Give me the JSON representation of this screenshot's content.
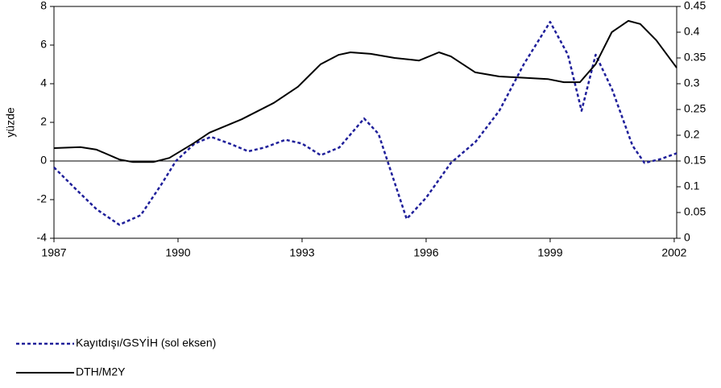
{
  "chart_data": {
    "type": "line",
    "y_label": "yüzde",
    "xlim": [
      1987,
      2002.06
    ],
    "xticks": [
      1987,
      1990,
      1993,
      1996,
      1999,
      2002
    ],
    "ylim": [
      -4,
      8
    ],
    "yticks": [
      -4,
      -2,
      0,
      2,
      4,
      6,
      8
    ],
    "y2lim": [
      0,
      0.45
    ],
    "y2ticks": [
      0,
      0.05,
      0.1,
      0.15,
      0.2,
      0.25,
      0.3,
      0.35,
      0.4,
      0.45
    ],
    "series": [
      {
        "name": "Kayıtdışı/GSYİH (sol eksen)",
        "color": "#1f1f9a",
        "dash": true,
        "x": [
          1987,
          1987.55,
          1988.03,
          1988.58,
          1989.1,
          1989.6,
          1989.95,
          1990.4,
          1990.8,
          1991.25,
          1991.7,
          1992.1,
          1992.6,
          1993.0,
          1993.45,
          1993.9,
          1994.5,
          1994.85,
          1995.53,
          1996.0,
          1996.6,
          1997.2,
          1997.77,
          1998.36,
          1999.0,
          1999.43,
          1999.76,
          2000.1,
          2000.5,
          2000.99,
          2001.28,
          2001.67,
          2002.06
        ],
        "values": [
          -0.33,
          -1.5,
          -2.5,
          -3.3,
          -2.8,
          -1.2,
          0.0,
          0.9,
          1.25,
          0.9,
          0.5,
          0.7,
          1.1,
          0.9,
          0.3,
          0.7,
          2.2,
          1.4,
          -3.0,
          -1.9,
          -0.1,
          1.0,
          2.6,
          5.0,
          7.2,
          5.5,
          2.6,
          5.5,
          3.7,
          0.8,
          -0.1,
          0.1,
          0.4
        ]
      },
      {
        "name": "DTH/M2Y",
        "color": "#000000",
        "dash": false,
        "axis": "y2",
        "x": [
          1987,
          1987.64,
          1988.03,
          1988.58,
          1988.91,
          1989.4,
          1989.79,
          1990.37,
          1990.76,
          1991.54,
          1992.32,
          1992.9,
          1993.45,
          1993.88,
          1994.17,
          1994.66,
          1995.24,
          1995.83,
          1996.31,
          1996.6,
          1997.19,
          1997.77,
          1998.94,
          1999.33,
          1999.72,
          2000.1,
          2000.49,
          2000.89,
          2001.18,
          2001.57,
          2002.06
        ],
        "values": [
          0.175,
          0.177,
          0.172,
          0.153,
          0.148,
          0.148,
          0.156,
          0.184,
          0.205,
          0.231,
          0.263,
          0.294,
          0.338,
          0.356,
          0.361,
          0.358,
          0.35,
          0.345,
          0.361,
          0.353,
          0.322,
          0.314,
          0.309,
          0.303,
          0.303,
          0.338,
          0.4,
          0.422,
          0.416,
          0.384,
          0.331
        ]
      }
    ]
  }
}
